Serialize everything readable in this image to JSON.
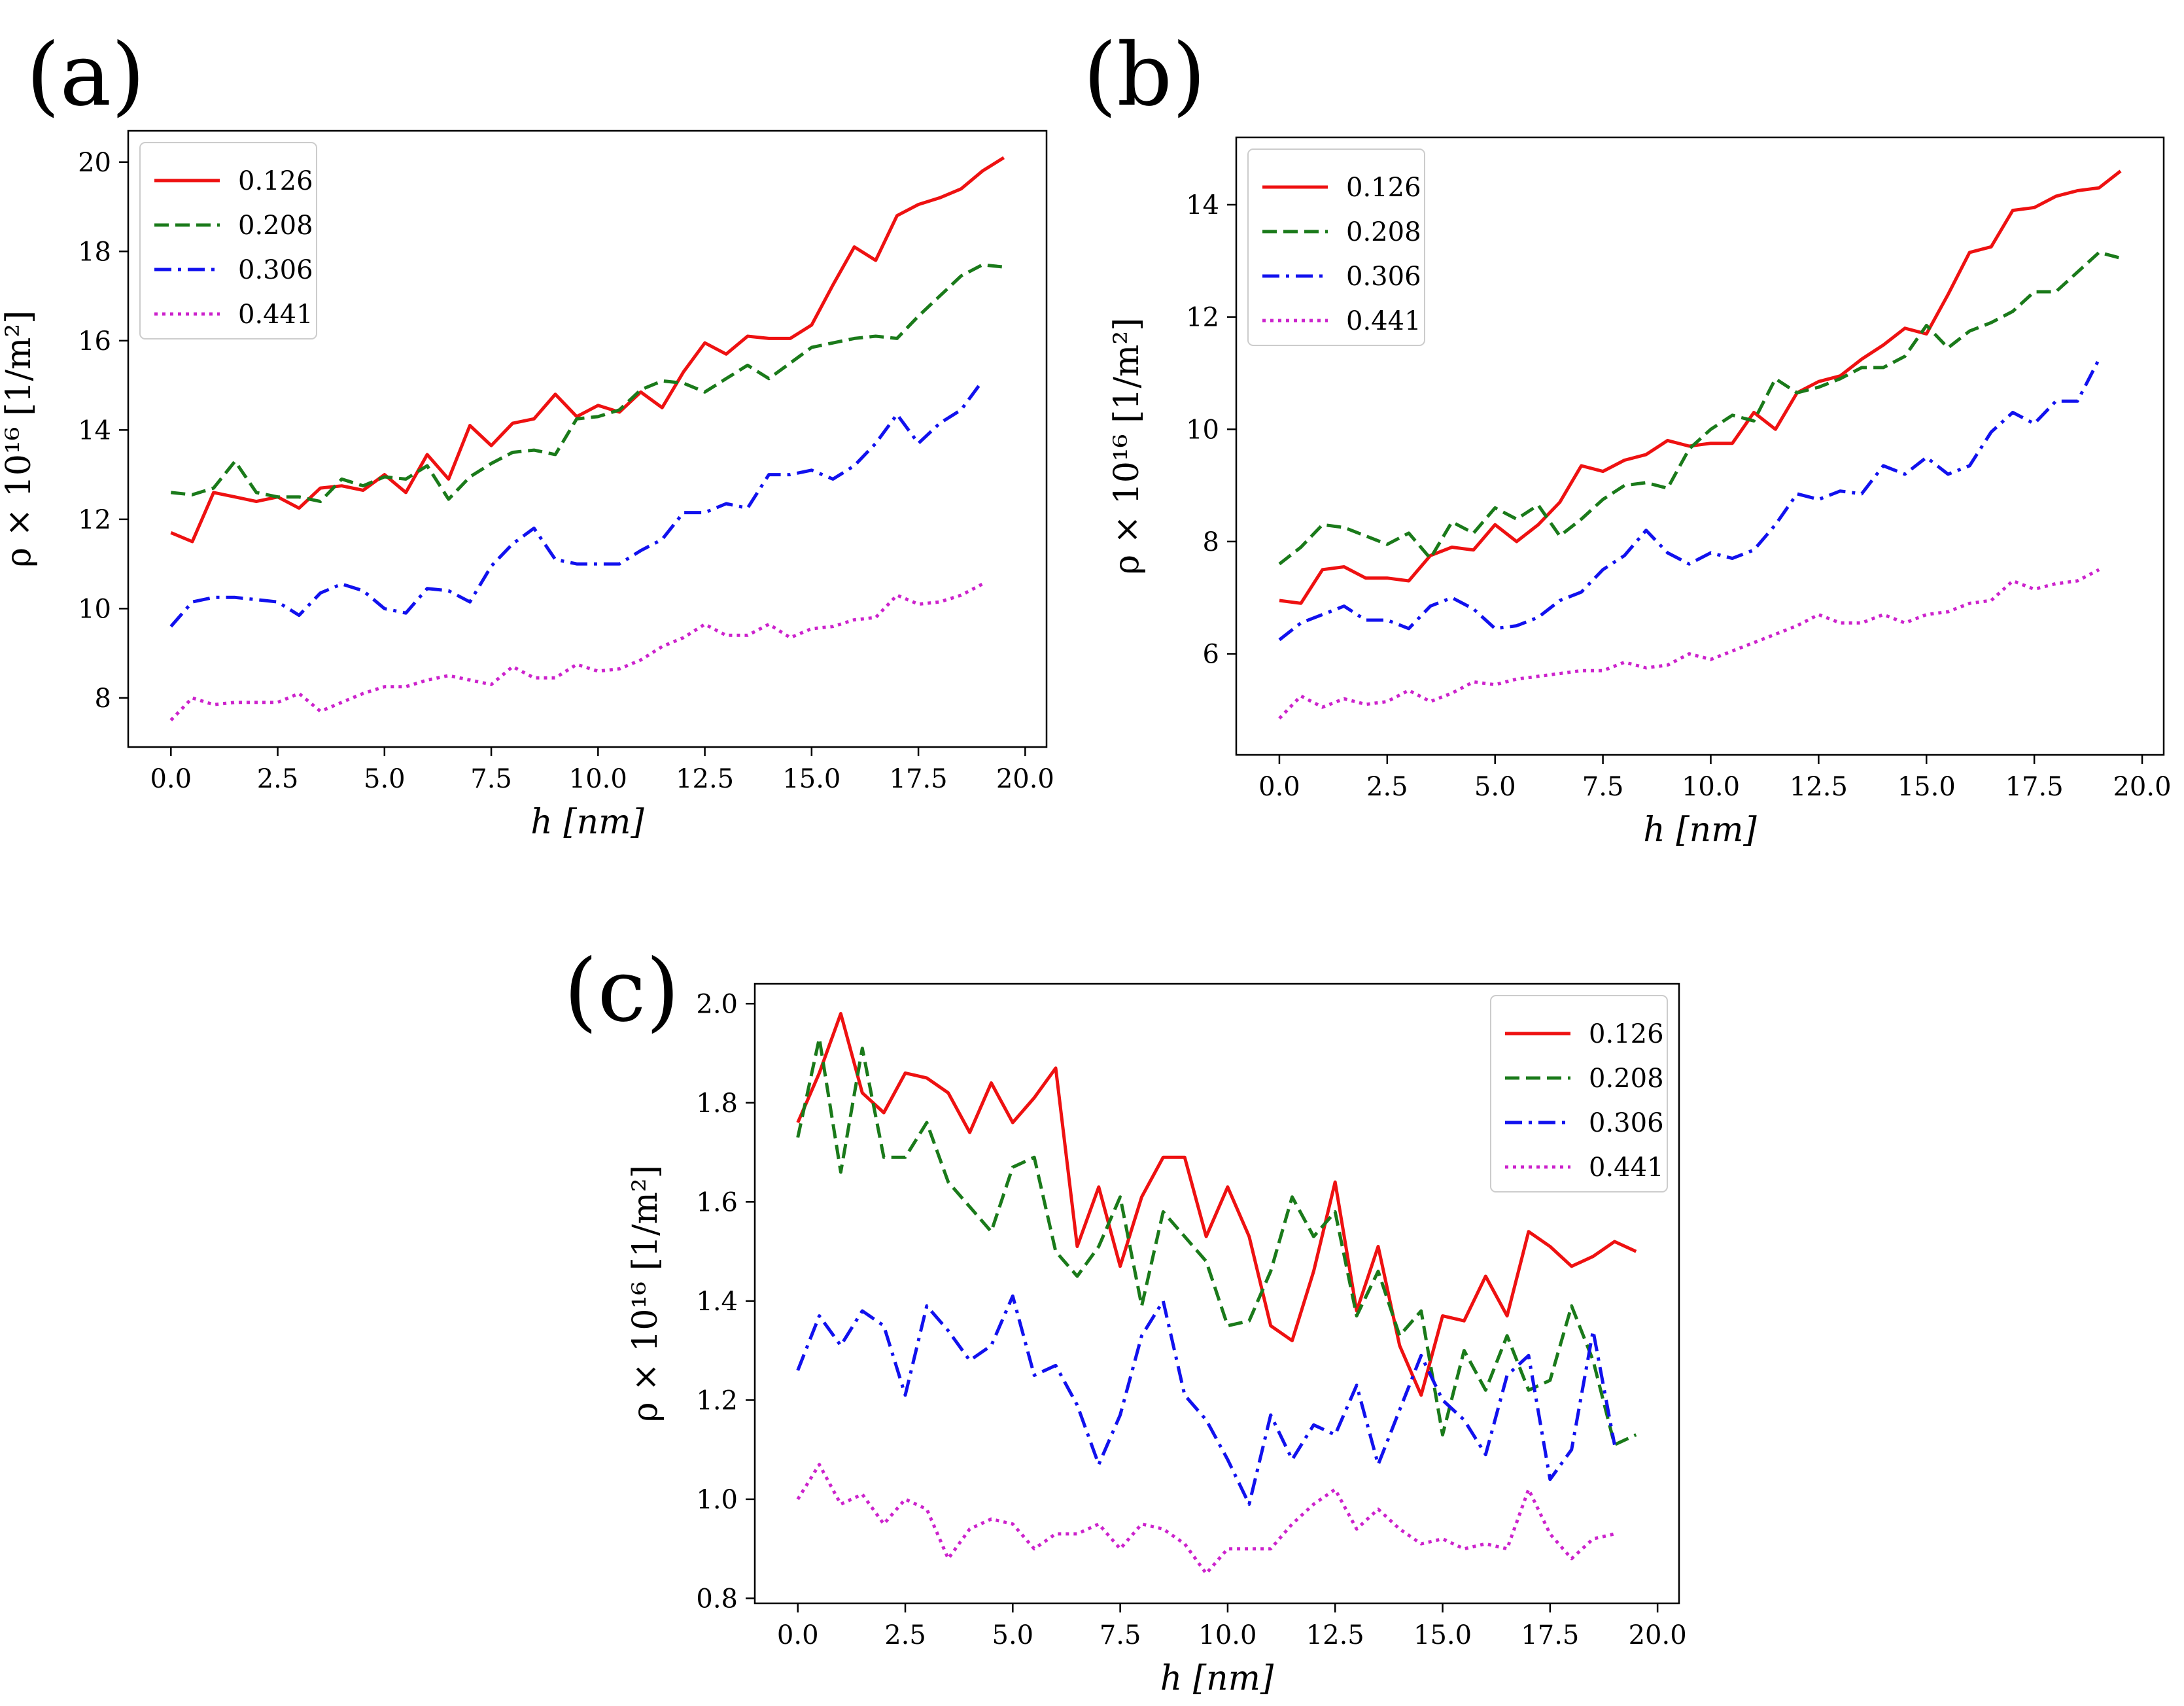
{
  "legend_labels": [
    "0.126",
    "0.208",
    "0.306",
    "0.441"
  ],
  "colors": {
    "red": "#ee1111",
    "green": "#1a7a1a",
    "blue": "#1111ee",
    "magenta": "#cc22cc"
  },
  "chart_data": [
    {
      "panel": "(a)",
      "type": "line",
      "xlabel": "h [nm]",
      "ylabel": "ρ × 10¹⁶ [1/m²]",
      "xlim": [
        -1.0,
        20.5
      ],
      "ylim": [
        6.9,
        20.7
      ],
      "xticks": [
        0.0,
        2.5,
        5.0,
        7.5,
        10.0,
        12.5,
        15.0,
        17.5,
        20.0
      ],
      "xtick_labels": [
        "0.0",
        "2.5",
        "5.0",
        "7.5",
        "10.0",
        "12.5",
        "15.0",
        "17.5",
        "20.0"
      ],
      "yticks": [
        8,
        10,
        12,
        14,
        16,
        18,
        20
      ],
      "ytick_labels": [
        "8",
        "10",
        "12",
        "14",
        "16",
        "18",
        "20"
      ],
      "legend_position": "top-left",
      "series": [
        {
          "name": "0.126",
          "color": "#ee1111",
          "style": "solid",
          "x0": 0,
          "dx": 0.5,
          "values": [
            11.7,
            11.5,
            12.6,
            12.5,
            12.4,
            12.5,
            12.25,
            12.7,
            12.75,
            12.65,
            13.0,
            12.6,
            13.45,
            12.9,
            14.1,
            13.65,
            14.15,
            14.25,
            14.8,
            14.3,
            14.55,
            14.4,
            14.85,
            14.5,
            15.3,
            15.95,
            15.7,
            16.1,
            16.05,
            16.05,
            16.35,
            17.25,
            18.1,
            17.8,
            18.8,
            19.05,
            19.2,
            19.4,
            19.8,
            20.1
          ]
        },
        {
          "name": "0.208",
          "color": "#1a7a1a",
          "style": "dashed",
          "x0": 0,
          "dx": 0.5,
          "values": [
            12.6,
            12.55,
            12.7,
            13.3,
            12.6,
            12.5,
            12.5,
            12.4,
            12.9,
            12.75,
            12.95,
            12.9,
            13.2,
            12.45,
            12.95,
            13.25,
            13.5,
            13.55,
            13.45,
            14.25,
            14.3,
            14.45,
            14.9,
            15.1,
            15.05,
            14.85,
            15.15,
            15.45,
            15.15,
            15.5,
            15.85,
            15.95,
            16.05,
            16.1,
            16.05,
            16.55,
            17.0,
            17.45,
            17.7,
            17.65
          ]
        },
        {
          "name": "0.306",
          "color": "#1111ee",
          "style": "dashdot",
          "x0": 0,
          "dx": 0.5,
          "values": [
            9.6,
            10.15,
            10.25,
            10.25,
            10.2,
            10.15,
            9.85,
            10.35,
            10.55,
            10.4,
            10.0,
            9.9,
            10.45,
            10.4,
            10.15,
            10.95,
            11.45,
            11.8,
            11.1,
            11.0,
            11.0,
            11.0,
            11.3,
            11.55,
            12.15,
            12.15,
            12.35,
            12.25,
            13.0,
            13.0,
            13.1,
            12.9,
            13.2,
            13.7,
            14.35,
            13.7,
            14.15,
            14.45,
            15.1
          ]
        },
        {
          "name": "0.441",
          "color": "#cc22cc",
          "style": "dotted",
          "x0": 0,
          "dx": 0.5,
          "values": [
            7.5,
            8.0,
            7.85,
            7.9,
            7.9,
            7.9,
            8.1,
            7.7,
            7.9,
            8.1,
            8.25,
            8.25,
            8.4,
            8.5,
            8.4,
            8.3,
            8.7,
            8.45,
            8.45,
            8.75,
            8.6,
            8.65,
            8.85,
            9.15,
            9.35,
            9.65,
            9.4,
            9.4,
            9.65,
            9.35,
            9.55,
            9.6,
            9.75,
            9.8,
            10.3,
            10.1,
            10.15,
            10.3,
            10.55
          ]
        }
      ]
    },
    {
      "panel": "(b)",
      "type": "line",
      "xlabel": "h [nm]",
      "ylabel": "ρ × 10¹⁶ [1/m²]",
      "xlim": [
        -1.0,
        20.5
      ],
      "ylim": [
        4.2,
        15.2
      ],
      "xticks": [
        0.0,
        2.5,
        5.0,
        7.5,
        10.0,
        12.5,
        15.0,
        17.5,
        20.0
      ],
      "xtick_labels": [
        "0.0",
        "2.5",
        "5.0",
        "7.5",
        "10.0",
        "12.5",
        "15.0",
        "17.5",
        "20.0"
      ],
      "yticks": [
        6,
        8,
        10,
        12,
        14
      ],
      "ytick_labels": [
        "6",
        "8",
        "10",
        "12",
        "14"
      ],
      "legend_position": "top-left",
      "series": [
        {
          "name": "0.126",
          "color": "#ee1111",
          "style": "solid",
          "x0": 0,
          "dx": 0.5,
          "values": [
            6.95,
            6.9,
            7.5,
            7.55,
            7.35,
            7.35,
            7.3,
            7.75,
            7.9,
            7.85,
            8.3,
            8.0,
            8.3,
            8.7,
            9.35,
            9.25,
            9.45,
            9.55,
            9.8,
            9.7,
            9.75,
            9.75,
            10.3,
            10.0,
            10.65,
            10.85,
            10.95,
            11.25,
            11.5,
            11.8,
            11.7,
            12.4,
            13.15,
            13.25,
            13.9,
            13.95,
            14.15,
            14.25,
            14.3,
            14.6
          ]
        },
        {
          "name": "0.208",
          "color": "#1a7a1a",
          "style": "dashed",
          "x0": 0,
          "dx": 0.5,
          "values": [
            7.6,
            7.9,
            8.3,
            8.25,
            8.1,
            7.95,
            8.15,
            7.7,
            8.35,
            8.15,
            8.6,
            8.4,
            8.65,
            8.1,
            8.4,
            8.75,
            9.0,
            9.05,
            8.95,
            9.65,
            10.0,
            10.25,
            10.15,
            10.9,
            10.65,
            10.75,
            10.9,
            11.1,
            11.1,
            11.3,
            11.85,
            11.45,
            11.75,
            11.9,
            12.1,
            12.45,
            12.45,
            12.8,
            13.15,
            13.05
          ]
        },
        {
          "name": "0.306",
          "color": "#1111ee",
          "style": "dashdot",
          "x0": 0,
          "dx": 0.5,
          "values": [
            6.25,
            6.55,
            6.7,
            6.85,
            6.6,
            6.6,
            6.45,
            6.85,
            7.0,
            6.8,
            6.45,
            6.5,
            6.65,
            6.95,
            7.1,
            7.5,
            7.75,
            8.2,
            7.8,
            7.6,
            7.8,
            7.7,
            7.85,
            8.3,
            8.85,
            8.75,
            8.9,
            8.85,
            9.35,
            9.2,
            9.5,
            9.2,
            9.35,
            9.95,
            10.3,
            10.1,
            10.5,
            10.5,
            11.25
          ]
        },
        {
          "name": "0.441",
          "color": "#cc22cc",
          "style": "dotted",
          "x0": 0,
          "dx": 0.5,
          "values": [
            4.85,
            5.25,
            5.05,
            5.2,
            5.1,
            5.15,
            5.35,
            5.15,
            5.3,
            5.5,
            5.45,
            5.55,
            5.6,
            5.65,
            5.7,
            5.7,
            5.85,
            5.75,
            5.8,
            6.0,
            5.9,
            6.05,
            6.2,
            6.35,
            6.5,
            6.7,
            6.55,
            6.55,
            6.7,
            6.55,
            6.7,
            6.75,
            6.9,
            6.95,
            7.3,
            7.15,
            7.25,
            7.3,
            7.5
          ]
        }
      ]
    },
    {
      "panel": "(c)",
      "type": "line",
      "xlabel": "h [nm]",
      "ylabel": "ρ × 10¹⁶ [1/m²]",
      "xlim": [
        -1.0,
        20.5
      ],
      "ylim": [
        0.79,
        2.04
      ],
      "xticks": [
        0.0,
        2.5,
        5.0,
        7.5,
        10.0,
        12.5,
        15.0,
        17.5,
        20.0
      ],
      "xtick_labels": [
        "0.0",
        "2.5",
        "5.0",
        "7.5",
        "10.0",
        "12.5",
        "15.0",
        "17.5",
        "20.0"
      ],
      "yticks": [
        0.8,
        1.0,
        1.2,
        1.4,
        1.6,
        1.8,
        2.0
      ],
      "ytick_labels": [
        "0.8",
        "1.0",
        "1.2",
        "1.4",
        "1.6",
        "1.8",
        "2.0"
      ],
      "legend_position": "top-right",
      "series": [
        {
          "name": "0.126",
          "color": "#ee1111",
          "style": "solid",
          "x0": 0,
          "dx": 0.5,
          "values": [
            1.76,
            1.86,
            1.98,
            1.82,
            1.78,
            1.86,
            1.85,
            1.82,
            1.74,
            1.84,
            1.76,
            1.81,
            1.87,
            1.51,
            1.63,
            1.47,
            1.61,
            1.69,
            1.69,
            1.53,
            1.63,
            1.53,
            1.35,
            1.32,
            1.46,
            1.64,
            1.38,
            1.51,
            1.31,
            1.21,
            1.37,
            1.36,
            1.45,
            1.37,
            1.54,
            1.51,
            1.47,
            1.49,
            1.52,
            1.5
          ]
        },
        {
          "name": "0.208",
          "color": "#1a7a1a",
          "style": "dashed",
          "x0": 0,
          "dx": 0.5,
          "values": [
            1.73,
            1.93,
            1.66,
            1.91,
            1.69,
            1.69,
            1.76,
            1.64,
            1.59,
            1.54,
            1.67,
            1.69,
            1.5,
            1.45,
            1.51,
            1.61,
            1.39,
            1.58,
            1.53,
            1.48,
            1.35,
            1.36,
            1.46,
            1.61,
            1.53,
            1.58,
            1.37,
            1.46,
            1.33,
            1.38,
            1.13,
            1.3,
            1.22,
            1.33,
            1.22,
            1.24,
            1.39,
            1.28,
            1.11,
            1.13
          ]
        },
        {
          "name": "0.306",
          "color": "#1111ee",
          "style": "dashdot",
          "x0": 0,
          "dx": 0.5,
          "values": [
            1.26,
            1.37,
            1.31,
            1.38,
            1.35,
            1.21,
            1.39,
            1.34,
            1.28,
            1.31,
            1.41,
            1.25,
            1.27,
            1.19,
            1.07,
            1.17,
            1.33,
            1.4,
            1.21,
            1.16,
            1.08,
            0.99,
            1.17,
            1.08,
            1.15,
            1.13,
            1.23,
            1.07,
            1.18,
            1.29,
            1.2,
            1.16,
            1.09,
            1.25,
            1.29,
            1.04,
            1.1,
            1.34,
            1.11
          ]
        },
        {
          "name": "0.441",
          "color": "#cc22cc",
          "style": "dotted",
          "x0": 0,
          "dx": 0.5,
          "values": [
            1.0,
            1.07,
            0.99,
            1.01,
            0.95,
            1.0,
            0.98,
            0.88,
            0.94,
            0.96,
            0.95,
            0.9,
            0.93,
            0.93,
            0.95,
            0.9,
            0.95,
            0.94,
            0.91,
            0.85,
            0.9,
            0.9,
            0.9,
            0.95,
            0.99,
            1.02,
            0.94,
            0.98,
            0.94,
            0.91,
            0.92,
            0.9,
            0.91,
            0.9,
            1.02,
            0.93,
            0.88,
            0.92,
            0.93
          ]
        }
      ]
    }
  ]
}
